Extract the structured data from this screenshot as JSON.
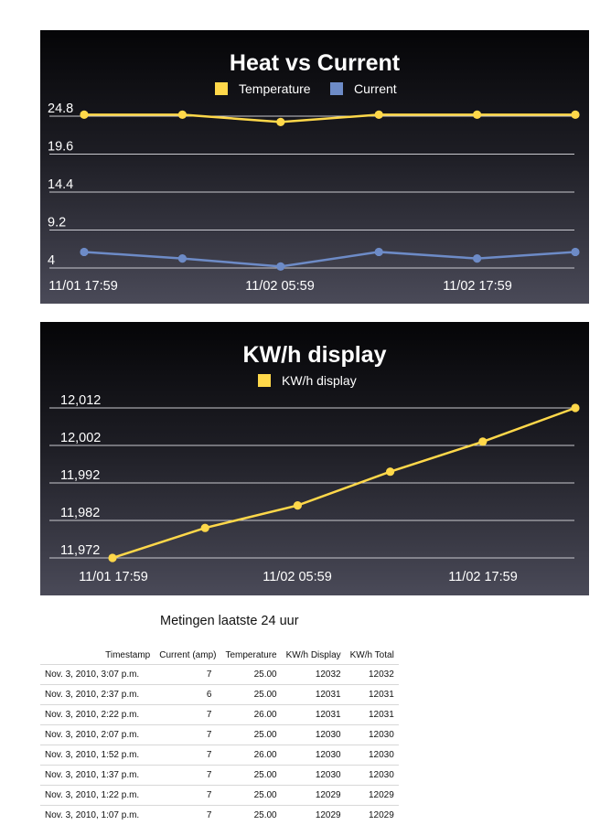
{
  "chart_data": [
    {
      "type": "line",
      "title": "Heat vs Current",
      "x_tick_labels": [
        "11/01 17:59",
        "11/02 05:59",
        "11/02 17:59"
      ],
      "y_tick_labels": [
        "24.8",
        "19.6",
        "14.4",
        "9.2",
        "4"
      ],
      "ylim": [
        4,
        24.8
      ],
      "grid": true,
      "legend": "top",
      "series": [
        {
          "name": "Temperature",
          "color": "#ffd84a",
          "values": [
            25,
            25,
            24,
            25,
            25,
            25
          ]
        },
        {
          "name": "Current",
          "color": "#6d8bc7",
          "values": [
            6.2,
            5.3,
            4.2,
            6.2,
            5.3,
            6.2
          ]
        }
      ]
    },
    {
      "type": "line",
      "title": "KW/h display",
      "x_tick_labels": [
        "11/01 17:59",
        "11/02 05:59",
        "11/02 17:59"
      ],
      "y_tick_labels": [
        "12,012",
        "12,002",
        "11,992",
        "11,982",
        "11,972"
      ],
      "ylim": [
        11972,
        12012
      ],
      "grid": true,
      "legend": "top",
      "series": [
        {
          "name": "KW/h display",
          "color": "#ffd84a",
          "values": [
            11972,
            11980,
            11986,
            11995,
            12003,
            12012
          ]
        }
      ]
    }
  ],
  "table": {
    "title": "Metingen laatste 24 uur",
    "columns": [
      "Timestamp",
      "Current (amp)",
      "Temperature",
      "KW/h Display",
      "KW/h Total"
    ],
    "rows": [
      [
        "Nov. 3, 2010, 3:07 p.m.",
        "7",
        "25.00",
        "12032",
        "12032"
      ],
      [
        "Nov. 3, 2010, 2:37 p.m.",
        "6",
        "25.00",
        "12031",
        "12031"
      ],
      [
        "Nov. 3, 2010, 2:22 p.m.",
        "7",
        "26.00",
        "12031",
        "12031"
      ],
      [
        "Nov. 3, 2010, 2:07 p.m.",
        "7",
        "25.00",
        "12030",
        "12030"
      ],
      [
        "Nov. 3, 2010, 1:52 p.m.",
        "7",
        "26.00",
        "12030",
        "12030"
      ],
      [
        "Nov. 3, 2010, 1:37 p.m.",
        "7",
        "25.00",
        "12030",
        "12030"
      ],
      [
        "Nov. 3, 2010, 1:22 p.m.",
        "7",
        "25.00",
        "12029",
        "12029"
      ],
      [
        "Nov. 3, 2010, 1:07 p.m.",
        "7",
        "25.00",
        "12029",
        "12029"
      ]
    ]
  }
}
